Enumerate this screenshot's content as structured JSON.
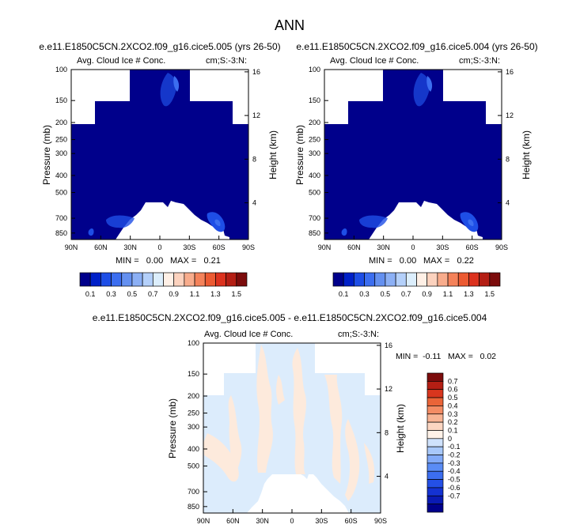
{
  "page": {
    "title": "ANN"
  },
  "colors": {
    "cb_levels": [
      "#00008b",
      "#0020c8",
      "#1e4ee6",
      "#3c6ef0",
      "#6490f0",
      "#8cb0f5",
      "#b4d0fa",
      "#dceefc",
      "#fff0e6",
      "#fcd2be",
      "#f8ac8c",
      "#f4825a",
      "#ec5a32",
      "#dc321e",
      "#b41e14",
      "#7c0c0c"
    ],
    "diff_levels": [
      "#00008b",
      "#0a1ab4",
      "#1432d2",
      "#2450e6",
      "#3c6ef0",
      "#5a8cf5",
      "#82aaf8",
      "#a8c8fa",
      "#cfe2fc",
      "#fff2e8",
      "#fcd6c2",
      "#f8b494",
      "#f48c64",
      "#ea6438",
      "#d8361e",
      "#b41e14",
      "#7c0c0c"
    ]
  },
  "chart_data": [
    {
      "type": "heatmap",
      "title": "e.e11.E1850C5CN.2XCO2.f09_g16.cice5.005 (yrs 26-50)",
      "left_label": "Avg. Cloud Ice # Conc.",
      "right_label": "cm;S:-3:N:",
      "ylabel": "Pressure (mb)",
      "ylabel_right": "Height (km)",
      "x_ticks": [
        "90N",
        "60N",
        "30N",
        "0",
        "30S",
        "60S",
        "90S"
      ],
      "y_ticks": [
        "100",
        "150",
        "200",
        "250",
        "300",
        "400",
        "500",
        "700",
        "850"
      ],
      "y2_ticks": [
        "16",
        "12",
        "8",
        "4"
      ],
      "y_scale": "log",
      "stats": {
        "min": "MIN =   0.00",
        "max": "MAX =   0.21"
      },
      "colorbar_labels": [
        "0.1",
        "0.3",
        "0.5",
        "0.7",
        "0.9",
        "1.1",
        "1.3",
        "1.5"
      ]
    },
    {
      "type": "heatmap",
      "title": "e.e11.E1850C5CN.2XCO2.f09_g16.cice5.004 (yrs 26-50)",
      "left_label": "Avg. Cloud Ice # Conc.",
      "right_label": "cm;S:-3:N:",
      "ylabel": "Pressure (mb)",
      "ylabel_right": "Height (km)",
      "x_ticks": [
        "90N",
        "60N",
        "30N",
        "0",
        "30S",
        "60S",
        "90S"
      ],
      "y_ticks": [
        "100",
        "150",
        "200",
        "250",
        "300",
        "400",
        "500",
        "700",
        "850"
      ],
      "y2_ticks": [
        "16",
        "12",
        "8",
        "4"
      ],
      "y_scale": "log",
      "stats": {
        "min": "MIN =   0.00",
        "max": "MAX =   0.22"
      },
      "colorbar_labels": [
        "0.1",
        "0.3",
        "0.5",
        "0.7",
        "0.9",
        "1.1",
        "1.3",
        "1.5"
      ]
    },
    {
      "type": "heatmap",
      "title": "e.e11.E1850C5CN.2XCO2.f09_g16.cice5.005 - e.e11.E1850C5CN.2XCO2.f09_g16.cice5.004",
      "left_label": "Avg. Cloud Ice # Conc.",
      "right_label": "cm;S:-3:N:",
      "ylabel": "Pressure (mb)",
      "ylabel_right": "Height (km)",
      "x_ticks": [
        "90N",
        "60N",
        "30N",
        "0",
        "30S",
        "60S",
        "90S"
      ],
      "y_ticks": [
        "100",
        "150",
        "200",
        "250",
        "300",
        "400",
        "500",
        "700",
        "850"
      ],
      "y2_ticks": [
        "16",
        "12",
        "8",
        "4"
      ],
      "y_scale": "log",
      "stats": {
        "text": "MIN =  -0.11   MAX =   0.02"
      },
      "colorbar_labels": [
        "0.7",
        "0.6",
        "0.5",
        "0.4",
        "0.3",
        "0.2",
        "0.1",
        "0",
        "-0.1",
        "-0.2",
        "-0.3",
        "-0.4",
        "-0.5",
        "-0.6",
        "-0.7"
      ]
    }
  ]
}
